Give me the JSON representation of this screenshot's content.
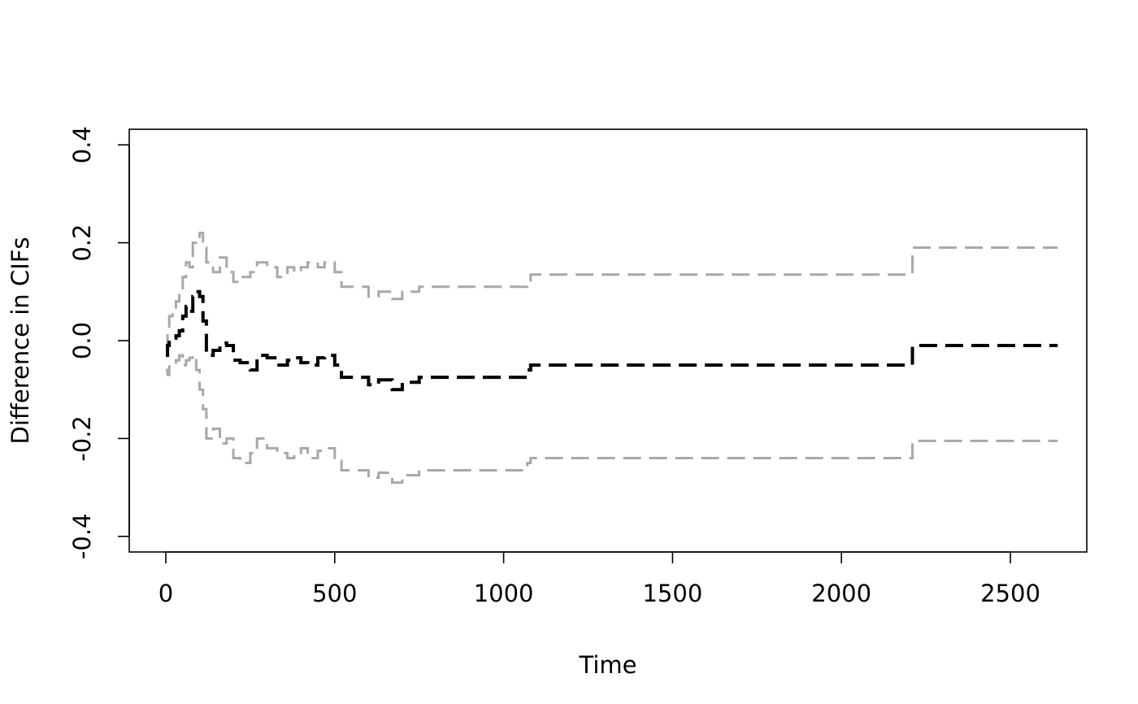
{
  "chart_data": {
    "type": "line",
    "step": true,
    "xlabel": "Time",
    "ylabel": "Difference in CIFs",
    "xlim": [
      0,
      2640
    ],
    "ylim": [
      -0.4,
      0.4
    ],
    "xticks": [
      0,
      500,
      1000,
      1500,
      2000,
      2500
    ],
    "yticks": [
      -0.4,
      -0.2,
      0.0,
      0.2,
      0.4
    ],
    "xtick_labels": [
      "0",
      "500",
      "1000",
      "1500",
      "2000",
      "2500"
    ],
    "ytick_labels": [
      "-0.4",
      "-0.2",
      "0.0",
      "0.2",
      "0.4"
    ],
    "grid": false,
    "series": [
      {
        "role": "upper confidence bound",
        "color": "#a8a8a8",
        "linestyle": "dashed",
        "x": [
          0,
          5,
          10,
          20,
          30,
          40,
          50,
          60,
          70,
          80,
          90,
          100,
          110,
          120,
          140,
          160,
          180,
          200,
          220,
          250,
          270,
          300,
          330,
          360,
          380,
          400,
          420,
          450,
          470,
          500,
          520,
          600,
          630,
          670,
          700,
          750,
          1060,
          1070,
          1080,
          2200,
          2210,
          2640
        ],
        "y": [
          -0.02,
          0.02,
          0.05,
          0.06,
          0.08,
          0.1,
          0.13,
          0.16,
          0.15,
          0.2,
          0.21,
          0.22,
          0.19,
          0.16,
          0.14,
          0.17,
          0.14,
          0.12,
          0.13,
          0.14,
          0.16,
          0.15,
          0.13,
          0.15,
          0.14,
          0.15,
          0.16,
          0.15,
          0.16,
          0.14,
          0.11,
          0.09,
          0.1,
          0.085,
          0.1,
          0.11,
          0.11,
          0.12,
          0.135,
          0.135,
          0.19,
          0.19
        ]
      },
      {
        "role": "estimate",
        "color": "#000000",
        "linestyle": "dashed",
        "x": [
          0,
          5,
          10,
          20,
          30,
          40,
          50,
          60,
          70,
          80,
          90,
          100,
          110,
          120,
          140,
          160,
          180,
          200,
          220,
          250,
          270,
          300,
          330,
          360,
          380,
          400,
          420,
          450,
          470,
          500,
          520,
          600,
          630,
          670,
          700,
          750,
          1060,
          1070,
          1080,
          2200,
          2210,
          2640
        ],
        "y": [
          -0.03,
          -0.01,
          0.0,
          0.005,
          0.01,
          0.02,
          0.05,
          0.07,
          0.06,
          0.09,
          0.1,
          0.09,
          0.04,
          -0.03,
          -0.02,
          -0.005,
          -0.01,
          -0.04,
          -0.045,
          -0.06,
          -0.03,
          -0.035,
          -0.05,
          -0.04,
          -0.035,
          -0.045,
          -0.05,
          -0.035,
          -0.03,
          -0.05,
          -0.075,
          -0.09,
          -0.08,
          -0.1,
          -0.085,
          -0.075,
          -0.075,
          -0.06,
          -0.05,
          -0.05,
          -0.01,
          -0.01
        ]
      },
      {
        "role": "lower confidence bound",
        "color": "#a8a8a8",
        "linestyle": "dashed",
        "x": [
          0,
          5,
          10,
          20,
          30,
          40,
          50,
          60,
          70,
          80,
          90,
          100,
          110,
          120,
          140,
          160,
          180,
          200,
          220,
          250,
          270,
          300,
          330,
          360,
          380,
          400,
          420,
          450,
          470,
          500,
          520,
          600,
          630,
          670,
          700,
          750,
          1060,
          1070,
          1080,
          2200,
          2210,
          2640
        ],
        "y": [
          -0.06,
          -0.07,
          -0.05,
          -0.045,
          -0.04,
          -0.03,
          -0.05,
          -0.04,
          -0.035,
          -0.03,
          -0.06,
          -0.1,
          -0.14,
          -0.2,
          -0.18,
          -0.21,
          -0.2,
          -0.24,
          -0.25,
          -0.23,
          -0.2,
          -0.22,
          -0.23,
          -0.24,
          -0.23,
          -0.22,
          -0.24,
          -0.225,
          -0.22,
          -0.245,
          -0.265,
          -0.28,
          -0.27,
          -0.29,
          -0.275,
          -0.265,
          -0.265,
          -0.25,
          -0.24,
          -0.24,
          -0.205,
          -0.205
        ]
      }
    ]
  }
}
